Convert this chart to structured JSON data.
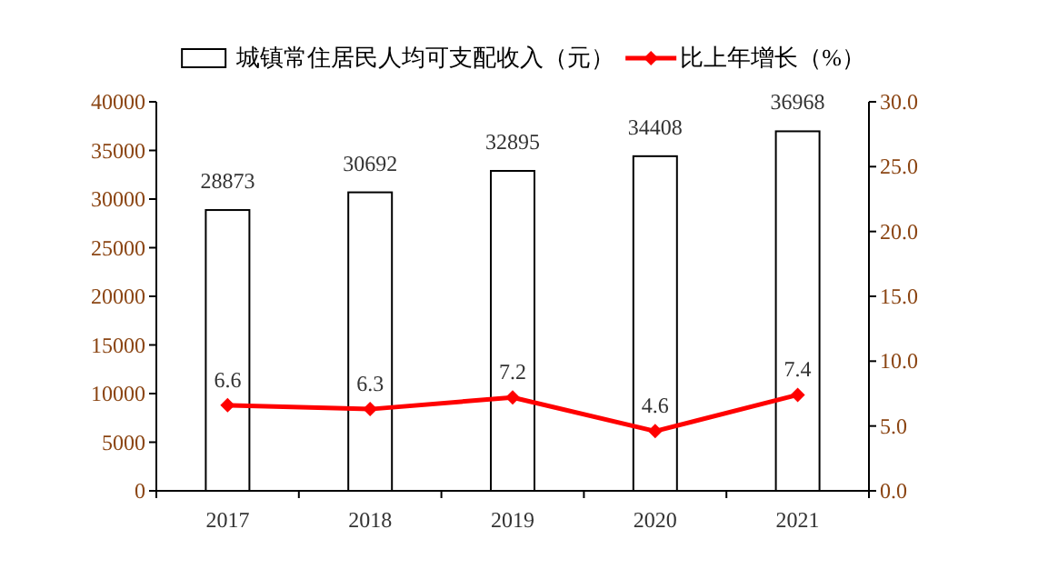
{
  "chart_data": {
    "type": "bar",
    "categories": [
      "2017",
      "2018",
      "2019",
      "2020",
      "2021"
    ],
    "series": [
      {
        "name": "城镇常住居民人均可支配收入（元）",
        "color": "#ffffff",
        "values": [
          28873,
          30692,
          32895,
          34408,
          36968
        ]
      },
      {
        "name": "比上年增长（%）",
        "type": "line",
        "axis": "y2",
        "color": "#ff0000",
        "marker": "diamond",
        "values": [
          6.6,
          6.3,
          7.2,
          4.6,
          7.4
        ]
      }
    ],
    "ylim": [
      0,
      40000
    ],
    "yticks": [
      0,
      5000,
      10000,
      15000,
      20000,
      25000,
      30000,
      35000,
      40000
    ],
    "y2lim": [
      0,
      30
    ],
    "y2ticks": [
      {
        "value": 0,
        "label": "0.0"
      },
      {
        "value": 5,
        "label": "5.0"
      },
      {
        "value": 10,
        "label": "10.0"
      },
      {
        "value": 15,
        "label": "15.0"
      },
      {
        "value": 20,
        "label": "20.0"
      },
      {
        "value": 25,
        "label": "25.0"
      },
      {
        "value": 30,
        "label": "30.0"
      }
    ],
    "data_labels": true,
    "grid": false,
    "legend": "top"
  }
}
